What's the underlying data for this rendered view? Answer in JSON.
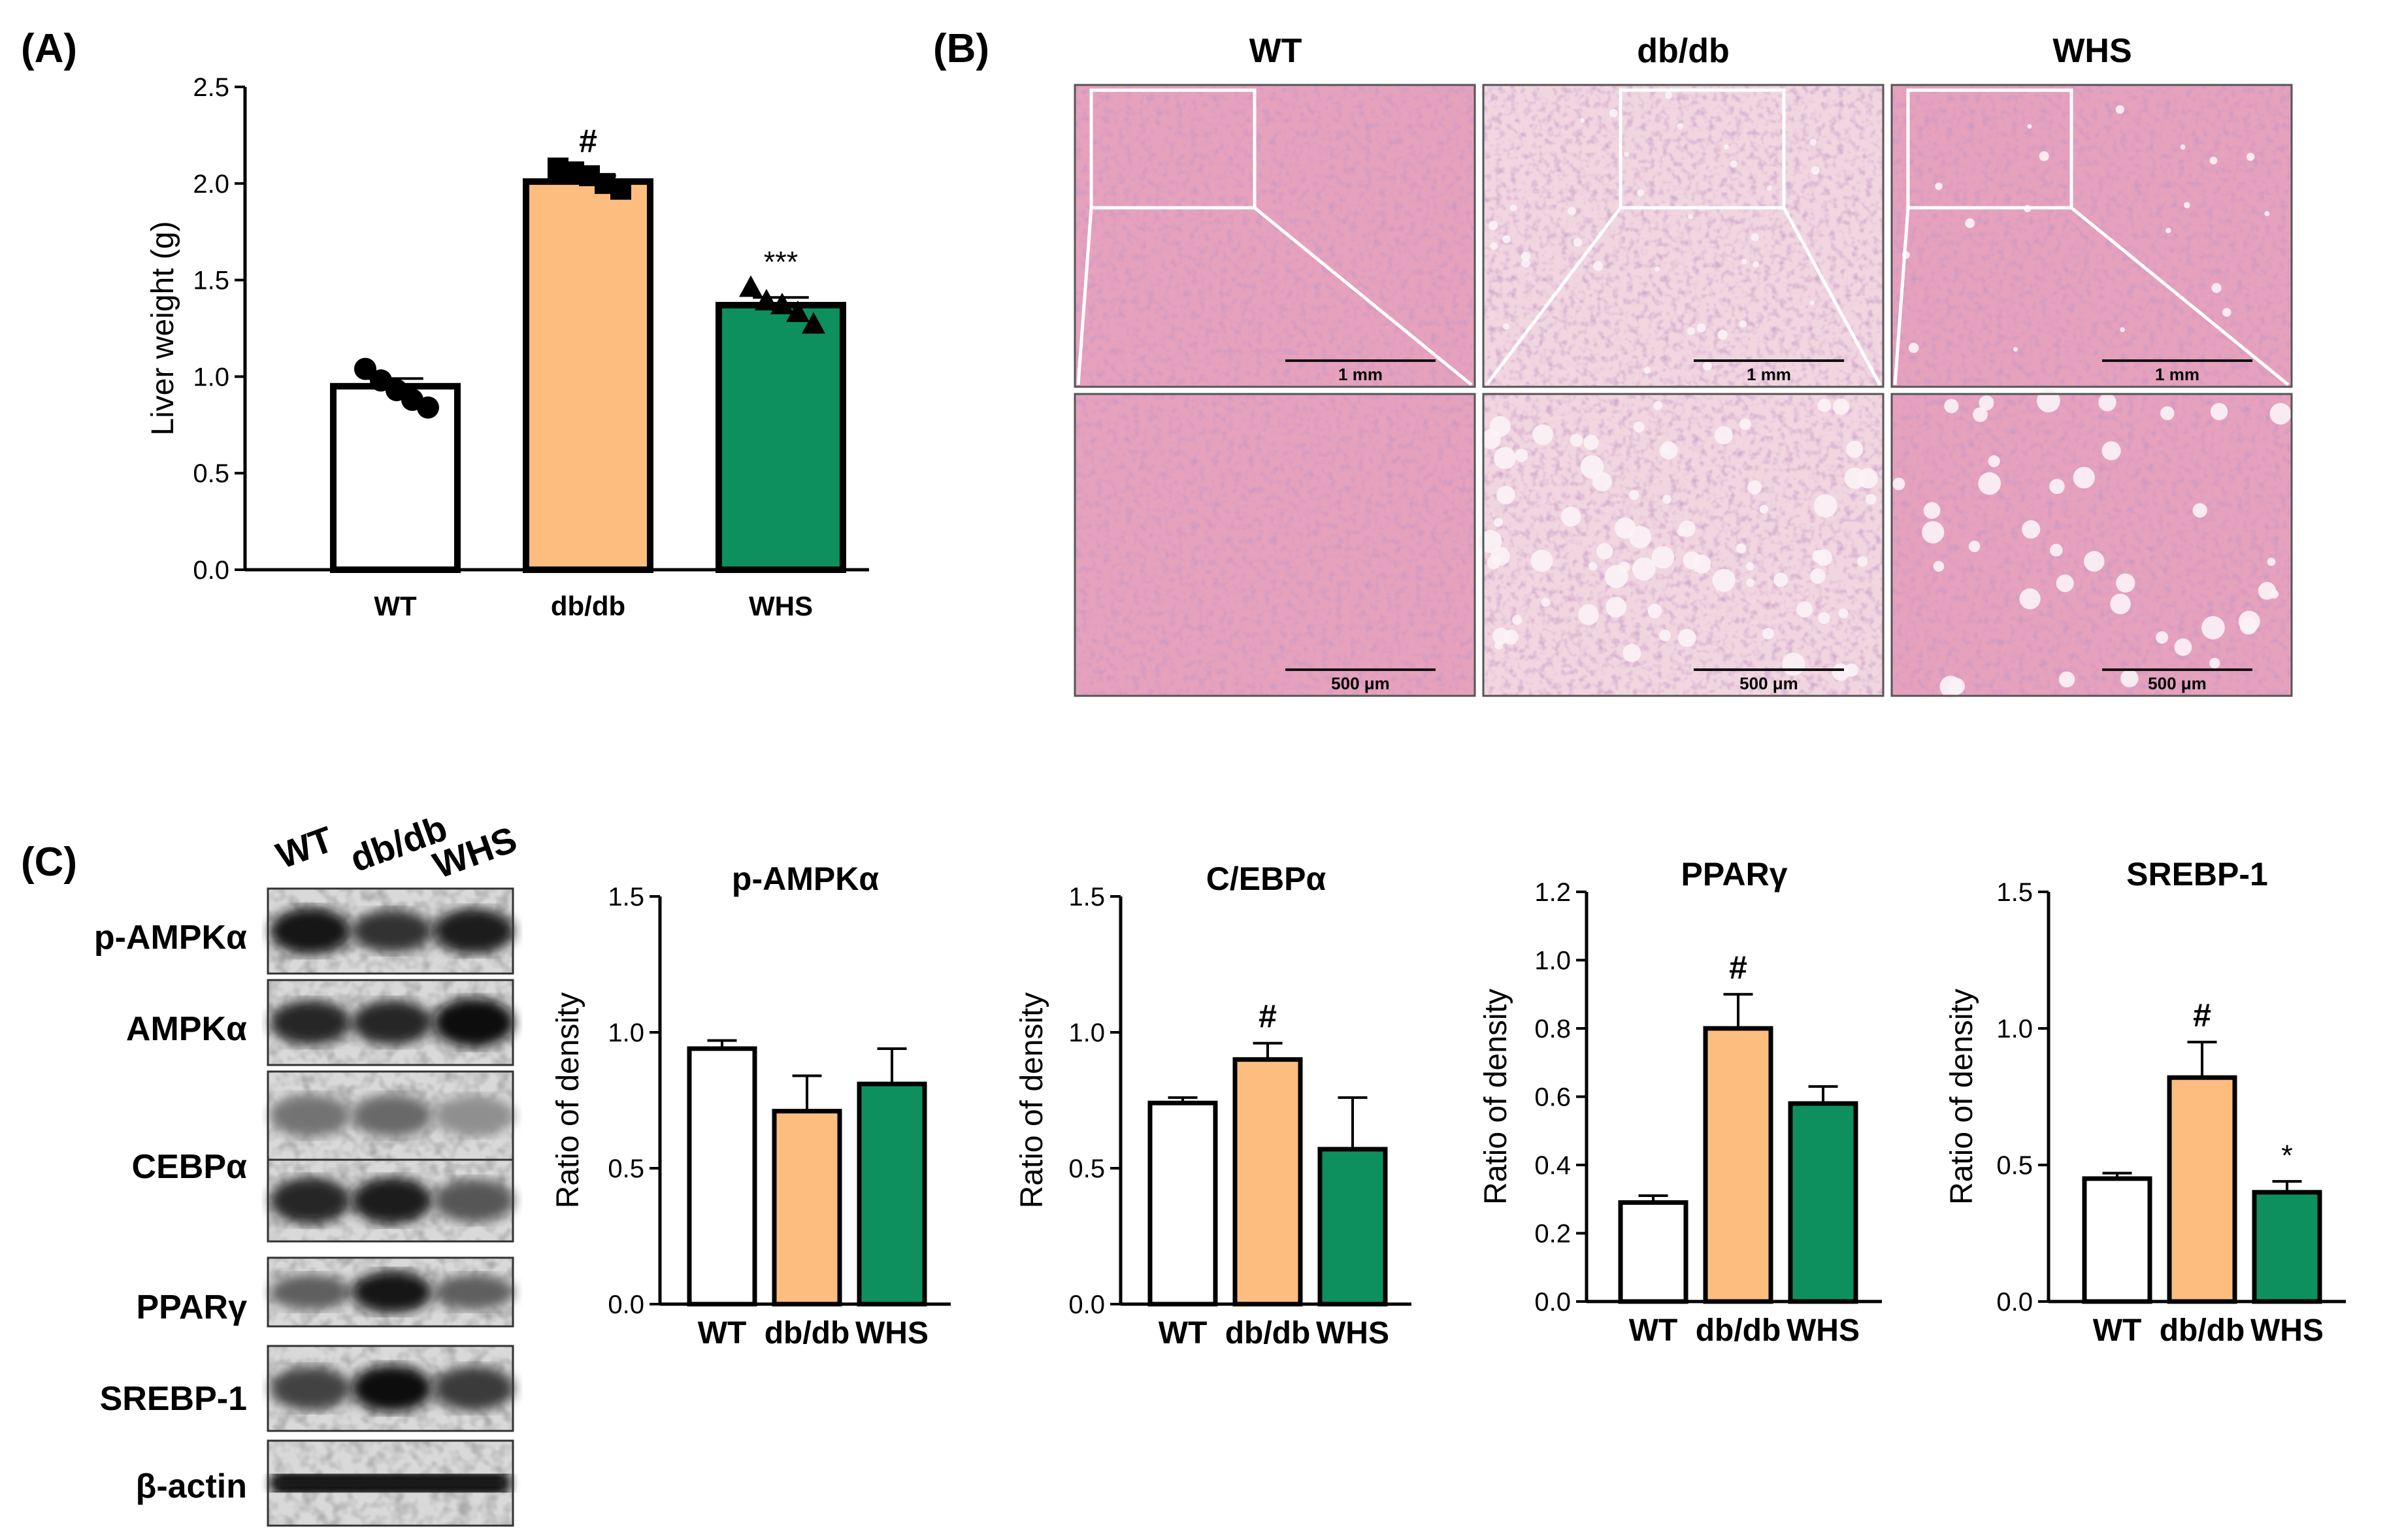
{
  "panels": {
    "a": "(A)",
    "b": "(B)",
    "c": "(C)"
  },
  "colors": {
    "WT": "#ffffff",
    "db/db": "#fcbd7f",
    "WHS": "#0e8f5e",
    "he_normal": "#e6a1bd",
    "he_fatty": "#f1d6e0"
  },
  "histology": {
    "columns": [
      "WT",
      "db/db",
      "WHS"
    ],
    "scale_top": "1 mm",
    "scale_bottom": "500 μm"
  },
  "western_blot": {
    "lanes": [
      "WT",
      "db/db",
      "WHS"
    ],
    "rows": [
      "p-AMPKα",
      "AMPKα",
      "CEBPα",
      "PPARγ",
      "SREBP-1",
      "β-actin"
    ]
  },
  "chart_data": [
    {
      "id": "liver",
      "type": "bar",
      "title": "",
      "ylabel": "Liver weight (g)",
      "xlabel": "",
      "categories": [
        "WT",
        "db/db",
        "WHS"
      ],
      "values": [
        0.95,
        2.01,
        1.37
      ],
      "errors": [
        0.04,
        0.03,
        0.04
      ],
      "points": [
        [
          1.04,
          0.98,
          0.93,
          0.88,
          0.84
        ],
        [
          2.08,
          2.06,
          2.04,
          2.0,
          1.97
        ],
        [
          1.46,
          1.39,
          1.37,
          1.33,
          1.27
        ]
      ],
      "markers": [
        "circle",
        "square",
        "triangle"
      ],
      "annotations": [
        "",
        "#",
        "***"
      ],
      "ylim": [
        0,
        2.5
      ],
      "yticks": [
        "0.0",
        "0.5",
        "1.0",
        "1.5",
        "2.0",
        "2.5"
      ],
      "grid": false
    },
    {
      "id": "pampk",
      "type": "bar",
      "title": "p-AMPKα",
      "ylabel": "Ratio of density",
      "xlabel": "",
      "categories": [
        "WT",
        "db/db",
        "WHS"
      ],
      "values": [
        0.94,
        0.71,
        0.81
      ],
      "errors": [
        0.03,
        0.13,
        0.13
      ],
      "annotations": [
        "",
        "",
        ""
      ],
      "ylim": [
        0,
        1.5
      ],
      "yticks": [
        "0.0",
        "0.5",
        "1.0",
        "1.5"
      ],
      "grid": false
    },
    {
      "id": "cebpa",
      "type": "bar",
      "title": "C/EBPα",
      "ylabel": "Ratio of density",
      "xlabel": "",
      "categories": [
        "WT",
        "db/db",
        "WHS"
      ],
      "values": [
        0.74,
        0.9,
        0.57
      ],
      "errors": [
        0.02,
        0.06,
        0.19
      ],
      "annotations": [
        "",
        "#",
        ""
      ],
      "ylim": [
        0,
        1.5
      ],
      "yticks": [
        "0.0",
        "0.5",
        "1.0",
        "1.5"
      ],
      "grid": false
    },
    {
      "id": "pparg",
      "type": "bar",
      "title": "PPARγ",
      "ylabel": "Ratio of density",
      "xlabel": "",
      "categories": [
        "WT",
        "db/db",
        "WHS"
      ],
      "values": [
        0.29,
        0.8,
        0.58
      ],
      "errors": [
        0.02,
        0.1,
        0.05
      ],
      "annotations": [
        "",
        "#",
        ""
      ],
      "ylim": [
        0,
        1.2
      ],
      "yticks": [
        "0.0",
        "0.2",
        "0.4",
        "0.6",
        "0.8",
        "1.0",
        "1.2"
      ],
      "grid": false
    },
    {
      "id": "srebp",
      "type": "bar",
      "title": "SREBP-1",
      "ylabel": "Ratio of density",
      "xlabel": "",
      "categories": [
        "WT",
        "db/db",
        "WHS"
      ],
      "values": [
        0.45,
        0.82,
        0.4
      ],
      "errors": [
        0.02,
        0.13,
        0.04
      ],
      "annotations": [
        "",
        "#",
        "*"
      ],
      "ylim": [
        0,
        1.5
      ],
      "yticks": [
        "0.0",
        "0.5",
        "1.0",
        "1.5"
      ],
      "grid": false
    }
  ]
}
